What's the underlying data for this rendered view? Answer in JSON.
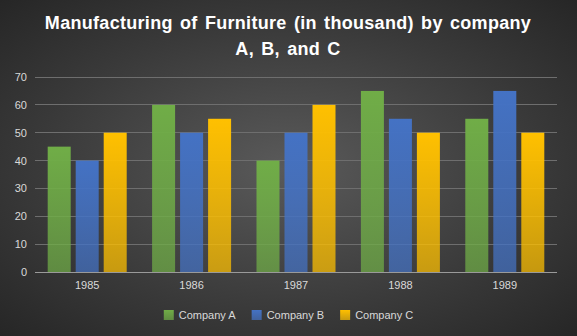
{
  "chart_data": {
    "type": "bar",
    "title": "Manufacturing of Furniture (in thousand) by company A, B, and C",
    "categories": [
      "1985",
      "1986",
      "1987",
      "1988",
      "1989"
    ],
    "series": [
      {
        "name": "Company A",
        "color": "#70ad47",
        "values": [
          45,
          60,
          40,
          65,
          55
        ]
      },
      {
        "name": "Company B",
        "color": "#4472c4",
        "values": [
          40,
          50,
          50,
          55,
          65
        ]
      },
      {
        "name": "Company C",
        "color": "#ffc000",
        "values": [
          50,
          55,
          60,
          50,
          50
        ]
      }
    ],
    "ylim": [
      0,
      70
    ],
    "yticks": [
      0,
      10,
      20,
      30,
      40,
      50,
      60,
      70
    ],
    "grid": true,
    "legend": "bottom"
  }
}
